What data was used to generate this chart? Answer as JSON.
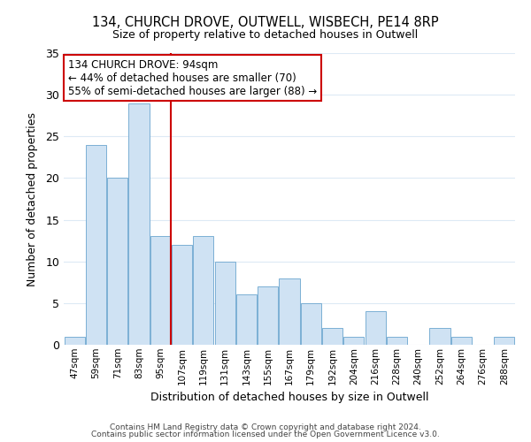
{
  "title": "134, CHURCH DROVE, OUTWELL, WISBECH, PE14 8RP",
  "subtitle": "Size of property relative to detached houses in Outwell",
  "xlabel": "Distribution of detached houses by size in Outwell",
  "ylabel": "Number of detached properties",
  "bar_labels": [
    "47sqm",
    "59sqm",
    "71sqm",
    "83sqm",
    "95sqm",
    "107sqm",
    "119sqm",
    "131sqm",
    "143sqm",
    "155sqm",
    "167sqm",
    "179sqm",
    "192sqm",
    "204sqm",
    "216sqm",
    "228sqm",
    "240sqm",
    "252sqm",
    "264sqm",
    "276sqm",
    "288sqm"
  ],
  "bar_heights": [
    1,
    24,
    20,
    29,
    13,
    12,
    13,
    10,
    6,
    7,
    8,
    5,
    2,
    1,
    4,
    1,
    0,
    2,
    1,
    0,
    1
  ],
  "bar_color": "#cfe2f3",
  "bar_edge_color": "#7bafd4",
  "highlight_index": 4,
  "highlight_line_color": "#cc0000",
  "ylim": [
    0,
    35
  ],
  "yticks": [
    0,
    5,
    10,
    15,
    20,
    25,
    30,
    35
  ],
  "annotation_text": "134 CHURCH DROVE: 94sqm\n← 44% of detached houses are smaller (70)\n55% of semi-detached houses are larger (88) →",
  "annotation_box_color": "#ffffff",
  "annotation_box_edge": "#cc0000",
  "footer_line1": "Contains HM Land Registry data © Crown copyright and database right 2024.",
  "footer_line2": "Contains public sector information licensed under the Open Government Licence v3.0.",
  "background_color": "#ffffff",
  "grid_color": "#ddeaf5"
}
